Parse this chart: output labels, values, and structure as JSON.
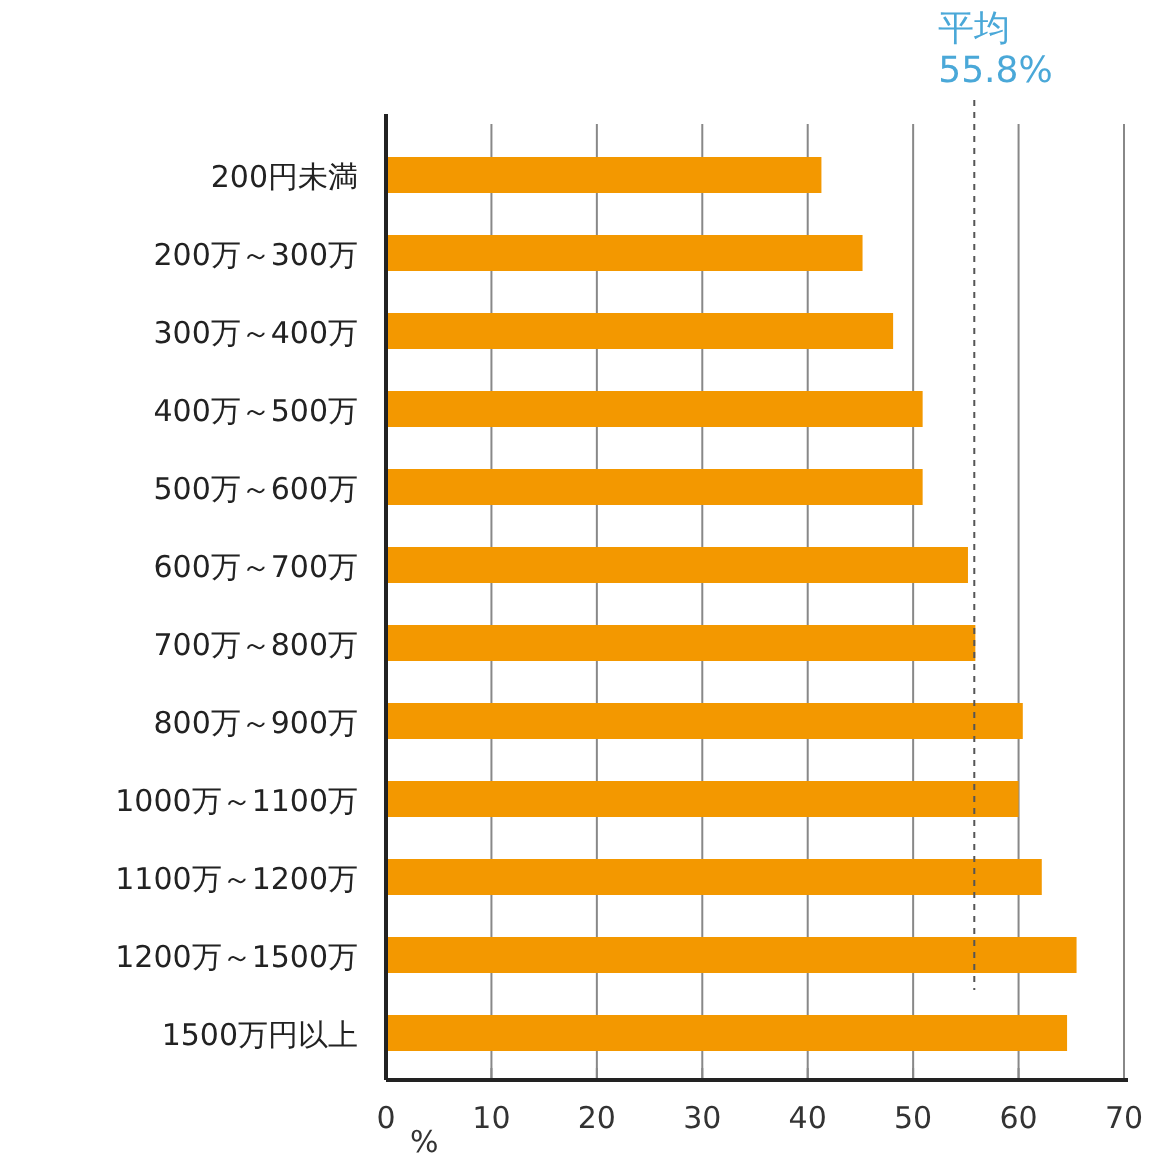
{
  "chart_data": {
    "type": "bar",
    "orientation": "horizontal",
    "categories": [
      "200円未満",
      "200万～300万",
      "300万～400万",
      "400万～500万",
      "500万～600万",
      "600万～700万",
      "700万～800万",
      "800万～900万",
      "1000万～1100万",
      "1100万～1200万",
      "1200万～1500万",
      "1500万円以上"
    ],
    "values": [
      41.3,
      45.2,
      48.1,
      50.9,
      50.9,
      55.2,
      55.9,
      60.4,
      60.0,
      62.2,
      65.5,
      64.6
    ],
    "color": "#f39800",
    "xlim": [
      0,
      70
    ],
    "xticks": [
      0,
      10,
      20,
      30,
      40,
      50,
      60,
      70
    ],
    "xlabel": "%",
    "grid": "x",
    "ref_lines": [
      {
        "axis": "x",
        "value": 55.8,
        "label": "平均\n55.8%",
        "color": "#555555",
        "line_style": "dashed"
      }
    ]
  }
}
